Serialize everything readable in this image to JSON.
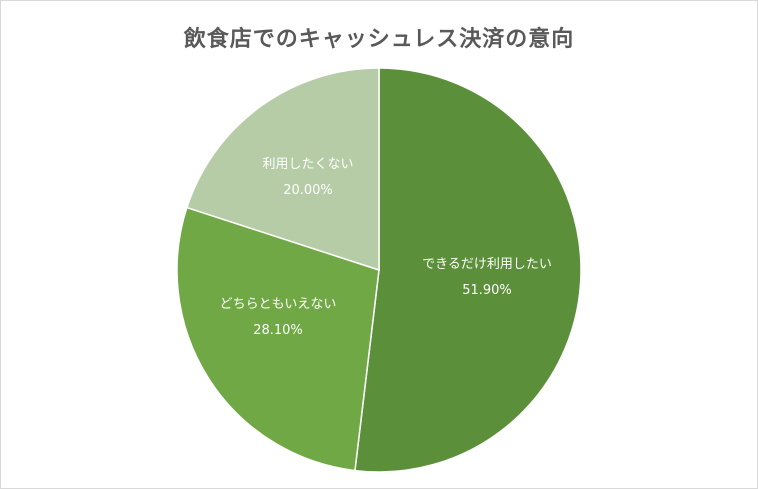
{
  "chart_data": {
    "type": "pie",
    "title": "飲食店でのキャッシュレス決済の意向",
    "slices": [
      {
        "label": "できるだけ利用したい",
        "value": 51.9,
        "value_label": "51.90%",
        "color": "#5b8f3a"
      },
      {
        "label": "どちらともいえない",
        "value": 28.1,
        "value_label": "28.10%",
        "color": "#6fa844"
      },
      {
        "label": "利用したくない",
        "value": 20.0,
        "value_label": "20.00%",
        "color": "#b5cca6"
      }
    ],
    "start": "12 o'clock",
    "direction": "clockwise",
    "legend": "none",
    "slice_border_color": "#ffffff"
  }
}
